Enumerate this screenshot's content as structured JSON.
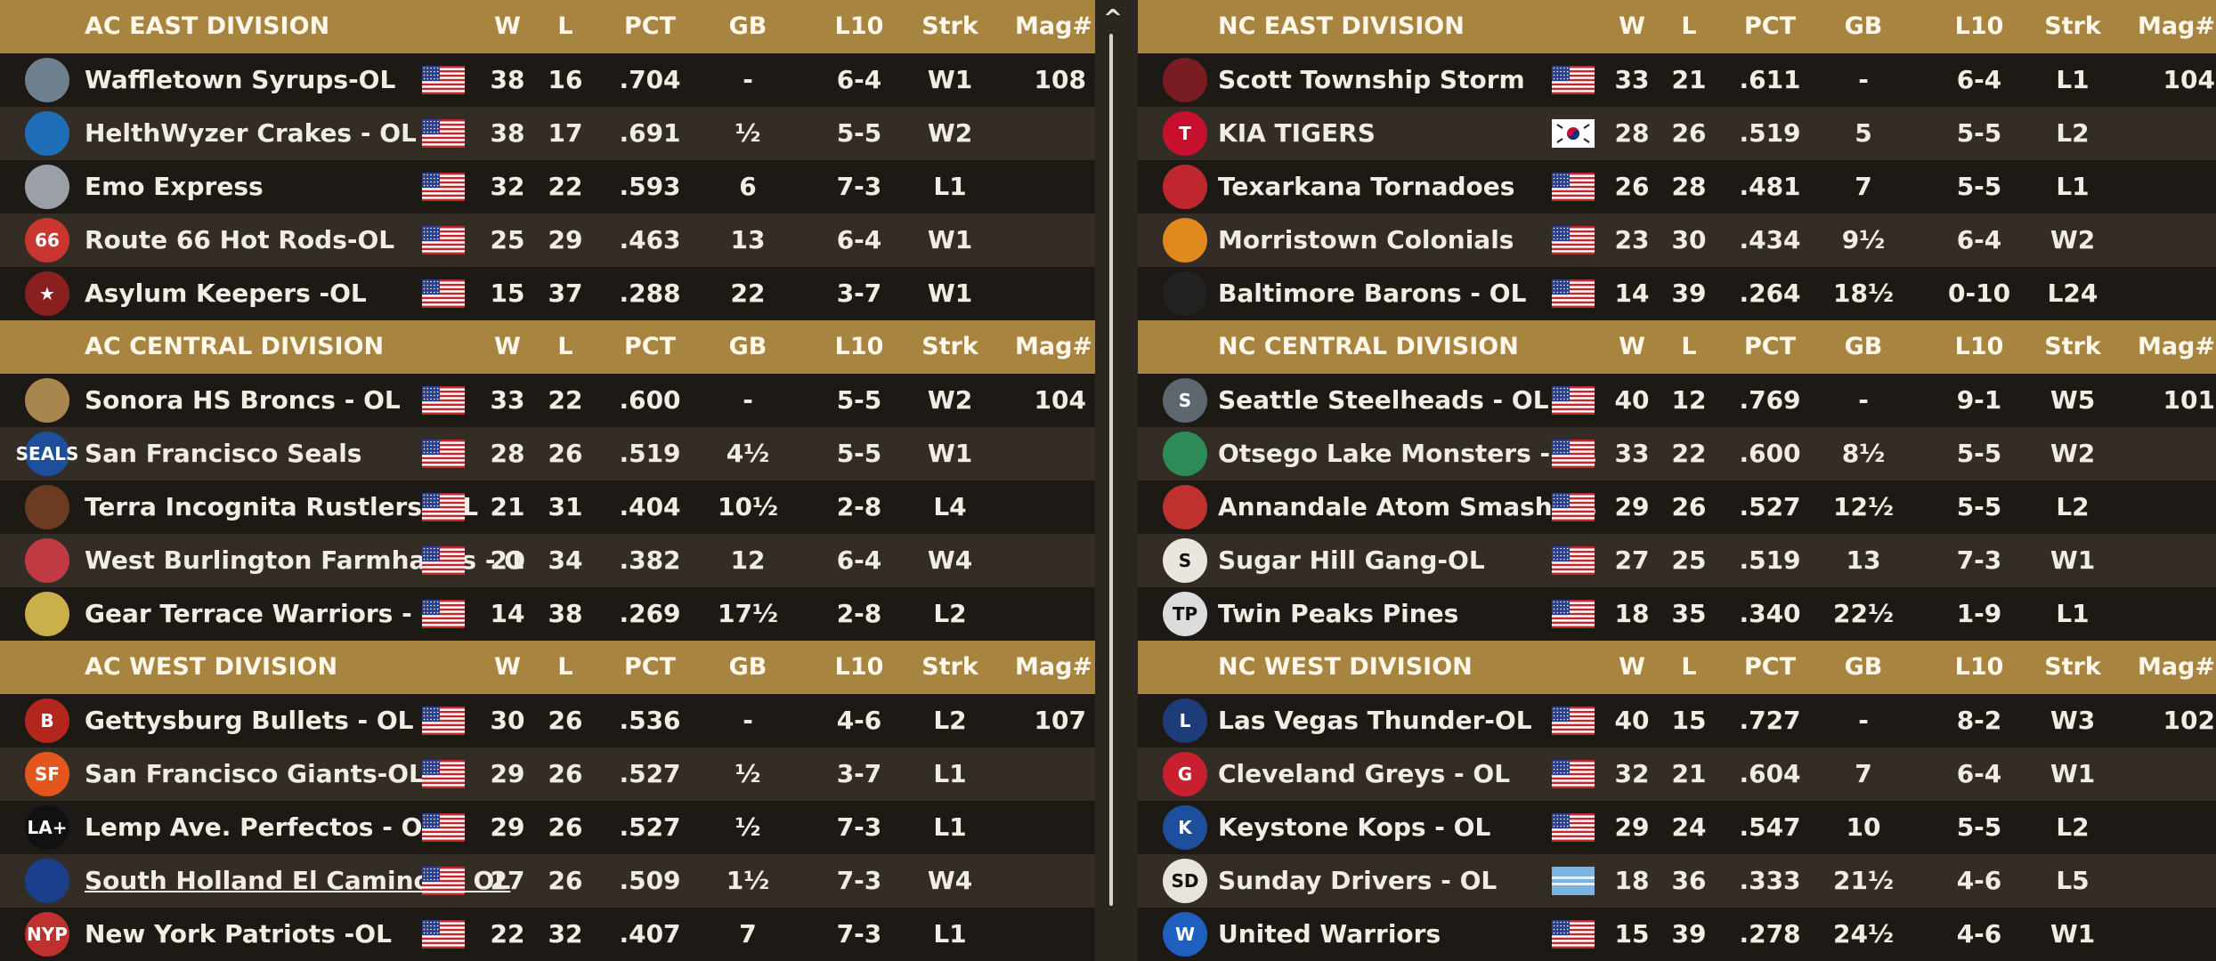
{
  "headers": {
    "w": "W",
    "l": "L",
    "pct": "PCT",
    "gb": "GB",
    "l10": "L10",
    "strk": "Strk",
    "mag": "Mag#"
  },
  "left": [
    {
      "name": "AC EAST DIVISION",
      "teams": [
        {
          "logo": "syrups-logo",
          "logo_text": "",
          "logo_color": "#6e7f8e",
          "team": "Waffletown Syrups-OL",
          "flag": "usa-flag",
          "w": "38",
          "l": "16",
          "pct": ".704",
          "gb": "-",
          "l10": "6-4",
          "strk": "W1",
          "mag": "108"
        },
        {
          "logo": "crakes-logo",
          "logo_text": "",
          "logo_color": "#1e6fb8",
          "team": "HelthWyzer Crakes - OL",
          "flag": "usa-flag",
          "w": "38",
          "l": "17",
          "pct": ".691",
          "gb": "½",
          "l10": "5-5",
          "strk": "W2",
          "mag": ""
        },
        {
          "logo": "emo-express-logo",
          "logo_text": "",
          "logo_color": "#9aa0a6",
          "team": "Emo Express",
          "flag": "usa-flag",
          "w": "32",
          "l": "22",
          "pct": ".593",
          "gb": "6",
          "l10": "7-3",
          "strk": "L1",
          "mag": ""
        },
        {
          "logo": "hot-rods-logo",
          "logo_text": "66",
          "logo_color": "#c9362f",
          "team": "Route 66 Hot Rods-OL",
          "flag": "usa-flag",
          "w": "25",
          "l": "29",
          "pct": ".463",
          "gb": "13",
          "l10": "6-4",
          "strk": "W1",
          "mag": ""
        },
        {
          "logo": "asylum-keepers-logo",
          "logo_text": "★",
          "logo_color": "#8a1f1f",
          "team": "Asylum Keepers -OL",
          "flag": "usa-flag",
          "w": "15",
          "l": "37",
          "pct": ".288",
          "gb": "22",
          "l10": "3-7",
          "strk": "W1",
          "mag": ""
        }
      ]
    },
    {
      "name": "AC CENTRAL DIVISION",
      "teams": [
        {
          "logo": "broncs-logo",
          "logo_text": "",
          "logo_color": "#a8874e",
          "team": "Sonora HS Broncs - OL",
          "flag": "usa-flag",
          "w": "33",
          "l": "22",
          "pct": ".600",
          "gb": "-",
          "l10": "5-5",
          "strk": "W2",
          "mag": "104"
        },
        {
          "logo": "seals-logo",
          "logo_text": "SEALS",
          "logo_color": "#1d4f9c",
          "team": "San Francisco Seals",
          "flag": "usa-flag",
          "w": "28",
          "l": "26",
          "pct": ".519",
          "gb": "4½",
          "l10": "5-5",
          "strk": "W1",
          "mag": ""
        },
        {
          "logo": "rustlers-logo",
          "logo_text": "",
          "logo_color": "#6b3b22",
          "team": "Terra Incognita Rustlers  -OL",
          "flag": "usa-flag",
          "w": "21",
          "l": "31",
          "pct": ".404",
          "gb": "10½",
          "l10": "2-8",
          "strk": "L4",
          "mag": ""
        },
        {
          "logo": "farmhands-logo",
          "logo_text": "",
          "logo_color": "#c03a44",
          "team": "West Burlington Farmhands - O",
          "flag": "usa-flag",
          "w": "21",
          "l": "34",
          "pct": ".382",
          "gb": "12",
          "l10": "6-4",
          "strk": "W4",
          "mag": ""
        },
        {
          "logo": "warriors-logo",
          "logo_text": "",
          "logo_color": "#c9b04a",
          "team": "Gear Terrace Warriors - OL",
          "flag": "usa-flag",
          "w": "14",
          "l": "38",
          "pct": ".269",
          "gb": "17½",
          "l10": "2-8",
          "strk": "L2",
          "mag": ""
        }
      ]
    },
    {
      "name": "AC WEST DIVISION",
      "teams": [
        {
          "logo": "bullets-logo",
          "logo_text": "B",
          "logo_color": "#b3261e",
          "team": "Gettysburg Bullets - OL",
          "flag": "usa-flag",
          "w": "30",
          "l": "26",
          "pct": ".536",
          "gb": "-",
          "l10": "4-6",
          "strk": "L2",
          "mag": "107"
        },
        {
          "logo": "giants-logo",
          "logo_text": "SF",
          "logo_color": "#e3571f",
          "team": "San Francisco Giants-OL",
          "flag": "usa-flag",
          "w": "29",
          "l": "26",
          "pct": ".527",
          "gb": "½",
          "l10": "3-7",
          "strk": "L1",
          "mag": ""
        },
        {
          "logo": "perfectos-logo",
          "logo_text": "LA+",
          "logo_color": "#111111",
          "team": "Lemp Ave. Perfectos - OL",
          "flag": "usa-flag",
          "w": "29",
          "l": "26",
          "pct": ".527",
          "gb": "½",
          "l10": "7-3",
          "strk": "L1",
          "mag": ""
        },
        {
          "logo": "el-caminos-logo",
          "logo_text": "",
          "logo_color": "#1b3f8a",
          "team": "South Holland El Caminos - OL",
          "flag": "usa-flag",
          "w": "27",
          "l": "26",
          "pct": ".509",
          "gb": "1½",
          "l10": "7-3",
          "strk": "W4",
          "mag": "",
          "underline": true
        },
        {
          "logo": "patriots-logo",
          "logo_text": "NYP",
          "logo_color": "#c0302f",
          "team": "New York Patriots -OL",
          "flag": "usa-flag",
          "w": "22",
          "l": "32",
          "pct": ".407",
          "gb": "7",
          "l10": "7-3",
          "strk": "L1",
          "mag": ""
        }
      ]
    }
  ],
  "right": [
    {
      "name": "NC EAST DIVISION",
      "teams": [
        {
          "logo": "storm-logo",
          "logo_text": "",
          "logo_color": "#7a1d22",
          "team": "Scott Township Storm",
          "flag": "usa-flag",
          "w": "33",
          "l": "21",
          "pct": ".611",
          "gb": "-",
          "l10": "6-4",
          "strk": "L1",
          "mag": "104"
        },
        {
          "logo": "kia-tigers-logo",
          "logo_text": "T",
          "logo_color": "#c8102e",
          "team": "KIA TIGERS",
          "flag": "korea-flag",
          "w": "28",
          "l": "26",
          "pct": ".519",
          "gb": "5",
          "l10": "5-5",
          "strk": "L2",
          "mag": ""
        },
        {
          "logo": "tornadoes-logo",
          "logo_text": "",
          "logo_color": "#c0262d",
          "team": "Texarkana Tornadoes",
          "flag": "usa-flag",
          "w": "26",
          "l": "28",
          "pct": ".481",
          "gb": "7",
          "l10": "5-5",
          "strk": "L1",
          "mag": ""
        },
        {
          "logo": "colonials-logo",
          "logo_text": "",
          "logo_color": "#e08a1e",
          "team": "Morristown Colonials",
          "flag": "usa-flag",
          "w": "23",
          "l": "30",
          "pct": ".434",
          "gb": "9½",
          "l10": "6-4",
          "strk": "W2",
          "mag": ""
        },
        {
          "logo": "barons-logo",
          "logo_text": "",
          "logo_color": "#222222",
          "team": "Baltimore Barons - OL",
          "flag": "usa-flag",
          "w": "14",
          "l": "39",
          "pct": ".264",
          "gb": "18½",
          "l10": "0-10",
          "strk": "L24",
          "mag": ""
        }
      ]
    },
    {
      "name": "NC CENTRAL DIVISION",
      "teams": [
        {
          "logo": "steelheads-logo",
          "logo_text": "S",
          "logo_color": "#5d6770",
          "team": "Seattle Steelheads - OL",
          "flag": "usa-flag",
          "w": "40",
          "l": "12",
          "pct": ".769",
          "gb": "-",
          "l10": "9-1",
          "strk": "W5",
          "mag": "101"
        },
        {
          "logo": "lake-monsters-logo",
          "logo_text": "",
          "logo_color": "#2e8b57",
          "team": "Otsego Lake Monsters - OL",
          "flag": "usa-flag",
          "w": "33",
          "l": "22",
          "pct": ".600",
          "gb": "8½",
          "l10": "5-5",
          "strk": "W2",
          "mag": ""
        },
        {
          "logo": "atom-smashers-logo",
          "logo_text": "",
          "logo_color": "#c0302f",
          "team": "Annandale Atom Smashers",
          "flag": "usa-flag",
          "w": "29",
          "l": "26",
          "pct": ".527",
          "gb": "12½",
          "l10": "5-5",
          "strk": "L2",
          "mag": ""
        },
        {
          "logo": "sugar-hill-logo",
          "logo_text": "S",
          "logo_color": "#e9e6e0",
          "team": "Sugar Hill Gang-OL",
          "flag": "usa-flag",
          "w": "27",
          "l": "25",
          "pct": ".519",
          "gb": "13",
          "l10": "7-3",
          "strk": "W1",
          "mag": ""
        },
        {
          "logo": "pines-logo",
          "logo_text": "TP",
          "logo_color": "#dcdcdc",
          "team": "Twin Peaks Pines",
          "flag": "usa-flag",
          "w": "18",
          "l": "35",
          "pct": ".340",
          "gb": "22½",
          "l10": "1-9",
          "strk": "L1",
          "mag": ""
        }
      ]
    },
    {
      "name": "NC WEST DIVISION",
      "teams": [
        {
          "logo": "thunder-logo",
          "logo_text": "L",
          "logo_color": "#1c3d7a",
          "team": "Las Vegas Thunder-OL",
          "flag": "usa-flag",
          "w": "40",
          "l": "15",
          "pct": ".727",
          "gb": "-",
          "l10": "8-2",
          "strk": "W3",
          "mag": "102"
        },
        {
          "logo": "greys-logo",
          "logo_text": "G",
          "logo_color": "#c8202f",
          "team": "Cleveland Greys - OL",
          "flag": "usa-flag",
          "w": "32",
          "l": "21",
          "pct": ".604",
          "gb": "7",
          "l10": "6-4",
          "strk": "W1",
          "mag": ""
        },
        {
          "logo": "kops-logo",
          "logo_text": "K",
          "logo_color": "#1d4f9c",
          "team": "Keystone Kops - OL",
          "flag": "usa-flag",
          "w": "29",
          "l": "24",
          "pct": ".547",
          "gb": "10",
          "l10": "5-5",
          "strk": "L2",
          "mag": ""
        },
        {
          "logo": "sunday-drivers-logo",
          "logo_text": "SD",
          "logo_color": "#e8e4dc",
          "team": "Sunday Drivers - OL",
          "flag": "blue-stripe-flag",
          "w": "18",
          "l": "36",
          "pct": ".333",
          "gb": "21½",
          "l10": "4-6",
          "strk": "L5",
          "mag": ""
        },
        {
          "logo": "united-warriors-logo",
          "logo_text": "W",
          "logo_color": "#1f5fbf",
          "team": "United Warriors",
          "flag": "usa-flag",
          "w": "15",
          "l": "39",
          "pct": ".278",
          "gb": "24½",
          "l10": "4-6",
          "strk": "W1",
          "mag": ""
        }
      ]
    }
  ],
  "scrollbar": {
    "up_icon": "chevron-up-icon"
  }
}
